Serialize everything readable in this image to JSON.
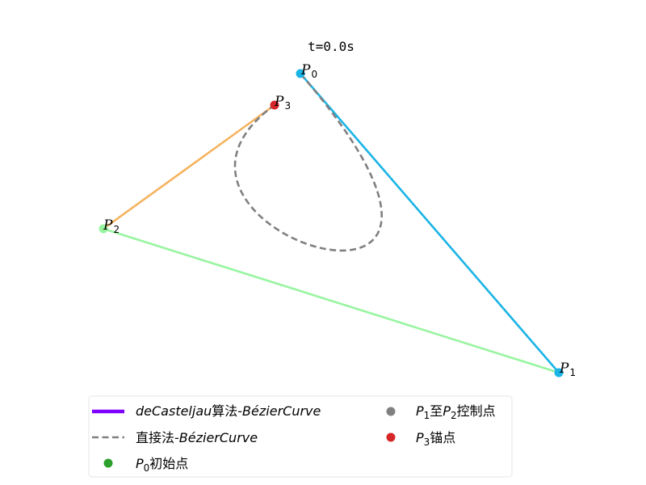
{
  "title": "t=0.0s",
  "colors": {
    "curve_decasteljau": "#7f00ff",
    "curve_direct": "#808080",
    "segment_p0_p1": "#1ab4e6",
    "segment_p1_p2": "#98f5a0",
    "segment_p2_p3": "#f5b35e",
    "point_p0": "#1ab4e6",
    "point_p1": "#1ab4e6",
    "point_p2": "#98f5a0",
    "point_p3": "#d62728",
    "legend_p0": "#2ca02c",
    "legend_ctrl": "#808080",
    "legend_p3": "#d62728"
  },
  "points": {
    "p0": {
      "letter": "P",
      "sub": "0"
    },
    "p1": {
      "letter": "P",
      "sub": "1"
    },
    "p2": {
      "letter": "P",
      "sub": "2"
    },
    "p3": {
      "letter": "P",
      "sub": "3"
    }
  },
  "legend": {
    "decasteljau": {
      "prefix": "deCasteljau",
      "cjk": "算法",
      "suffix": "-BézierCurve"
    },
    "direct": {
      "cjk": "直接法",
      "suffix": "-BézierCurve"
    },
    "p0": {
      "letter": "P",
      "sub": "0",
      "cjk": "初始点"
    },
    "ctrl": {
      "letter1": "P",
      "sub1": "1",
      "mid": "至",
      "letter2": "P",
      "sub2": "2",
      "cjk": "控制点"
    },
    "p3": {
      "letter": "P",
      "sub": "3",
      "cjk": "锚点"
    }
  }
}
